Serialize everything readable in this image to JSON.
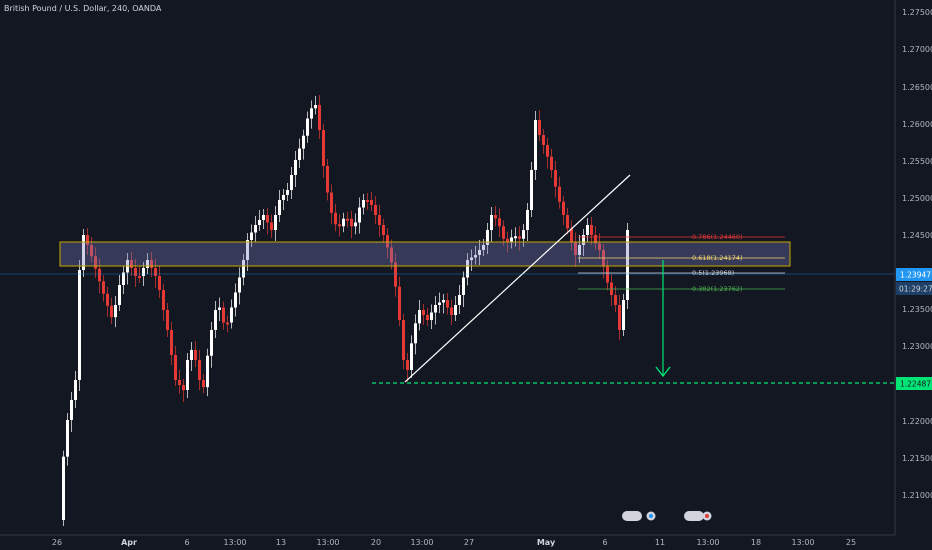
{
  "header": {
    "title": "British Pound / U.S. Dollar, 240, OANDA"
  },
  "price_axis": {
    "labels": [
      "1.27500",
      "1.27000",
      "1.26500",
      "1.26000",
      "1.25500",
      "1.25000",
      "1.24500",
      "1.23500",
      "1.23000",
      "1.22000",
      "1.21500",
      "1.21000"
    ],
    "current_price": "1.23947",
    "countdown": "01:29:27",
    "target_price": "1.22487"
  },
  "time_axis": {
    "labels": [
      "26",
      "Apr",
      "6",
      "13:00",
      "13",
      "13:00",
      "20",
      "13:00",
      "27",
      "May",
      "6",
      "11",
      "13:00",
      "18",
      "13:00",
      "25"
    ],
    "bold": [
      "Apr",
      "May"
    ]
  },
  "fib_levels": [
    {
      "label": "0.786(1.24460)",
      "color": "#e53935"
    },
    {
      "label": "0.618(1.24174)",
      "color": "#f5d76e"
    },
    {
      "label": "0.5(1.23968)",
      "color": "#d1d4dc"
    },
    {
      "label": "0.382(1.23762)",
      "color": "#4caf50"
    }
  ],
  "colors": {
    "background": "#131722",
    "up": "#ffffff",
    "down": "#e53935",
    "accent": "#2196f3",
    "target": "#00e676",
    "zone": "#c8a800"
  },
  "icons": [
    "event-flag-icon",
    "event-flag-icon"
  ]
}
